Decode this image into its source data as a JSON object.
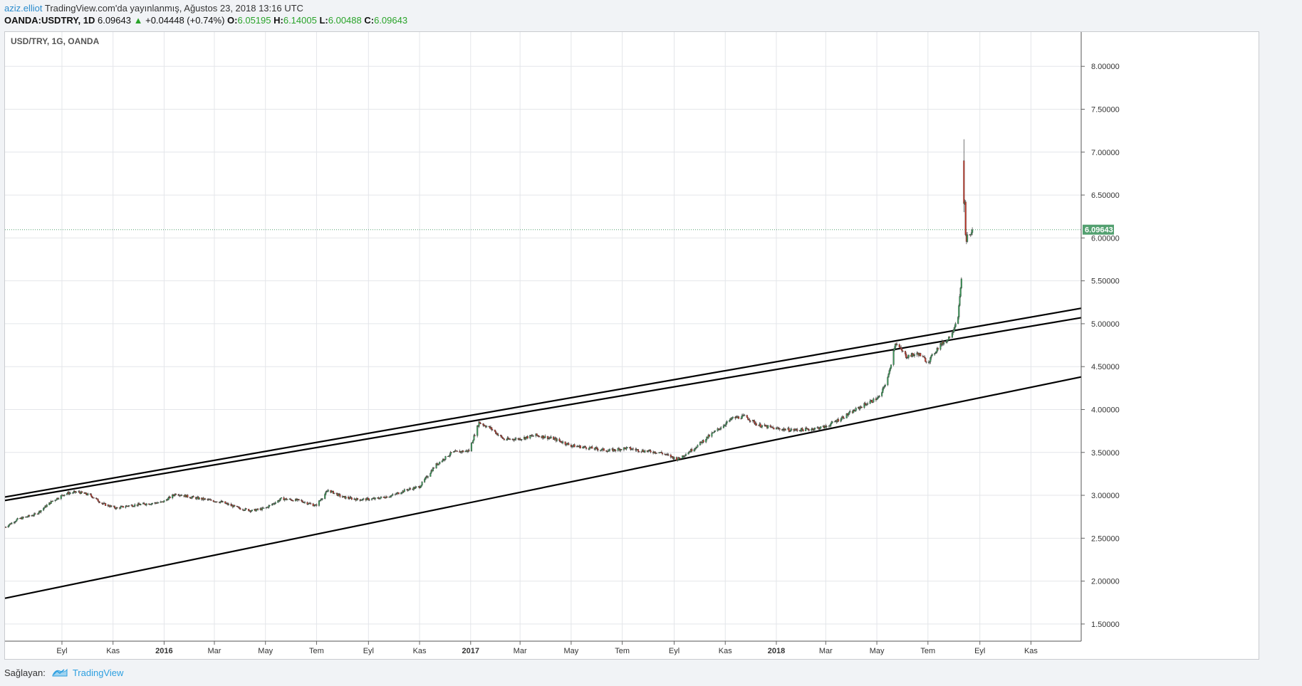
{
  "header": {
    "author": "aziz.elliot",
    "published": "TradingView.com'da yayınlanmış, Ağustos 23, 2018 13:16 UTC",
    "symbol": "OANDA:USDTRY, 1D",
    "last": "6.09643",
    "arrow": "▲",
    "change": "+0.04448 (+0.74%)",
    "o_label": "O:",
    "o_value": "6.05195",
    "h_label": "H:",
    "h_value": "6.14005",
    "l_label": "L:",
    "l_value": "6.00488",
    "c_label": "C:",
    "c_value": "6.09643"
  },
  "footer": {
    "provider_label": "Sağlayan:",
    "brand": "TradingView",
    "brand_icon": "tradingview-logo-icon"
  },
  "chart_data": {
    "type": "candlestick",
    "title": "USD/TRY, 1G, OANDA",
    "ylim": [
      1.3,
      8.4
    ],
    "y_ticks": [
      1.5,
      2.0,
      2.5,
      3.0,
      3.5,
      4.0,
      4.5,
      5.0,
      5.5,
      6.0,
      6.5,
      7.0,
      7.5,
      8.0
    ],
    "y_tick_labels": [
      "1.50000",
      "2.00000",
      "2.50000",
      "3.00000",
      "3.50000",
      "4.00000",
      "4.50000",
      "5.00000",
      "5.50000",
      "6.00000",
      "6.50000",
      "7.00000",
      "7.50000",
      "8.00000"
    ],
    "x_start": "2015-06-25",
    "x_end": "2018-12-31",
    "x_ticks": [
      {
        "date": "2015-09-01",
        "label": "Eyl",
        "bold": false
      },
      {
        "date": "2015-11-01",
        "label": "Kas",
        "bold": false
      },
      {
        "date": "2016-01-01",
        "label": "2016",
        "bold": true
      },
      {
        "date": "2016-03-01",
        "label": "Mar",
        "bold": false
      },
      {
        "date": "2016-05-01",
        "label": "May",
        "bold": false
      },
      {
        "date": "2016-07-01",
        "label": "Tem",
        "bold": false
      },
      {
        "date": "2016-09-01",
        "label": "Eyl",
        "bold": false
      },
      {
        "date": "2016-11-01",
        "label": "Kas",
        "bold": false
      },
      {
        "date": "2017-01-01",
        "label": "2017",
        "bold": true
      },
      {
        "date": "2017-03-01",
        "label": "Mar",
        "bold": false
      },
      {
        "date": "2017-05-01",
        "label": "May",
        "bold": false
      },
      {
        "date": "2017-07-01",
        "label": "Tem",
        "bold": false
      },
      {
        "date": "2017-09-01",
        "label": "Eyl",
        "bold": false
      },
      {
        "date": "2017-11-01",
        "label": "Kas",
        "bold": false
      },
      {
        "date": "2018-01-01",
        "label": "2018",
        "bold": true
      },
      {
        "date": "2018-03-01",
        "label": "Mar",
        "bold": false
      },
      {
        "date": "2018-05-01",
        "label": "May",
        "bold": false
      },
      {
        "date": "2018-07-01",
        "label": "Tem",
        "bold": false
      },
      {
        "date": "2018-09-01",
        "label": "Eyl",
        "bold": false
      },
      {
        "date": "2018-11-01",
        "label": "Kas",
        "bold": false
      }
    ],
    "grid": true,
    "last_price": 6.09643,
    "last_price_label": "6.09643",
    "price_path": [
      [
        "2015-06-25",
        2.63
      ],
      [
        "2015-07-10",
        2.72
      ],
      [
        "2015-08-01",
        2.78
      ],
      [
        "2015-08-20",
        2.93
      ],
      [
        "2015-09-05",
        3.02
      ],
      [
        "2015-09-20",
        3.04
      ],
      [
        "2015-10-05",
        3.0
      ],
      [
        "2015-10-20",
        2.9
      ],
      [
        "2015-11-05",
        2.85
      ],
      [
        "2015-11-20",
        2.88
      ],
      [
        "2015-12-10",
        2.9
      ],
      [
        "2015-12-30",
        2.92
      ],
      [
        "2016-01-15",
        3.02
      ],
      [
        "2016-02-01",
        2.98
      ],
      [
        "2016-02-20",
        2.95
      ],
      [
        "2016-03-10",
        2.92
      ],
      [
        "2016-03-30",
        2.85
      ],
      [
        "2016-04-15",
        2.82
      ],
      [
        "2016-05-01",
        2.85
      ],
      [
        "2016-05-20",
        2.96
      ],
      [
        "2016-06-10",
        2.94
      ],
      [
        "2016-06-30",
        2.88
      ],
      [
        "2016-07-15",
        3.06
      ],
      [
        "2016-08-01",
        2.98
      ],
      [
        "2016-08-20",
        2.95
      ],
      [
        "2016-09-10",
        2.96
      ],
      [
        "2016-09-30",
        3.0
      ],
      [
        "2016-10-15",
        3.06
      ],
      [
        "2016-11-01",
        3.1
      ],
      [
        "2016-11-20",
        3.35
      ],
      [
        "2016-12-10",
        3.5
      ],
      [
        "2016-12-30",
        3.52
      ],
      [
        "2017-01-11",
        3.85
      ],
      [
        "2017-01-25",
        3.78
      ],
      [
        "2017-02-10",
        3.65
      ],
      [
        "2017-03-01",
        3.66
      ],
      [
        "2017-03-20",
        3.7
      ],
      [
        "2017-04-10",
        3.66
      ],
      [
        "2017-05-01",
        3.58
      ],
      [
        "2017-05-25",
        3.55
      ],
      [
        "2017-06-15",
        3.52
      ],
      [
        "2017-07-05",
        3.55
      ],
      [
        "2017-07-25",
        3.52
      ],
      [
        "2017-08-15",
        3.5
      ],
      [
        "2017-09-05",
        3.42
      ],
      [
        "2017-09-25",
        3.55
      ],
      [
        "2017-10-10",
        3.67
      ],
      [
        "2017-10-25",
        3.78
      ],
      [
        "2017-11-10",
        3.9
      ],
      [
        "2017-11-25",
        3.92
      ],
      [
        "2017-12-10",
        3.82
      ],
      [
        "2017-12-30",
        3.78
      ],
      [
        "2018-01-20",
        3.76
      ],
      [
        "2018-02-10",
        3.77
      ],
      [
        "2018-03-01",
        3.8
      ],
      [
        "2018-03-25",
        3.93
      ],
      [
        "2018-04-15",
        4.05
      ],
      [
        "2018-05-05",
        4.15
      ],
      [
        "2018-05-15",
        4.4
      ],
      [
        "2018-05-23",
        4.78
      ],
      [
        "2018-06-05",
        4.62
      ],
      [
        "2018-06-20",
        4.65
      ],
      [
        "2018-07-01",
        4.55
      ],
      [
        "2018-07-15",
        4.75
      ],
      [
        "2018-07-25",
        4.82
      ],
      [
        "2018-08-01",
        4.95
      ],
      [
        "2018-08-06",
        5.1
      ],
      [
        "2018-08-09",
        5.4
      ],
      [
        "2018-08-10",
        5.55
      ],
      [
        "2018-08-13",
        6.7
      ],
      [
        "2018-08-14",
        6.4
      ],
      [
        "2018-08-15",
        6.05
      ],
      [
        "2018-08-16",
        5.95
      ],
      [
        "2018-08-17",
        6.05
      ],
      [
        "2018-08-20",
        6.02
      ],
      [
        "2018-08-21",
        6.05
      ],
      [
        "2018-08-22",
        6.06
      ],
      [
        "2018-08-23",
        6.09643
      ]
    ],
    "spike": {
      "date": "2018-08-13",
      "high": 7.15,
      "open": 6.9,
      "close": 6.4,
      "low": 6.3
    },
    "trendlines": [
      {
        "from": [
          "2015-06-25",
          2.98
        ],
        "to": [
          "2018-12-31",
          5.18
        ]
      },
      {
        "from": [
          "2015-06-25",
          2.94
        ],
        "to": [
          "2018-12-31",
          5.07
        ]
      },
      {
        "from": [
          "2015-06-25",
          1.8
        ],
        "to": [
          "2018-12-31",
          4.38
        ]
      }
    ],
    "colors": {
      "up": "#3c9a5a",
      "down": "#c0392b",
      "trendline": "#000000",
      "grid": "#e4e6ea",
      "last_price": "#53a070"
    }
  }
}
